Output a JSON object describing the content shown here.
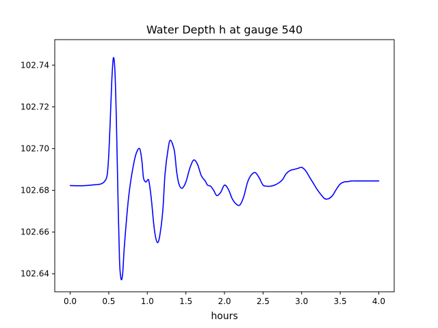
{
  "chart_data": {
    "type": "line",
    "title": "Water Depth h at gauge 540",
    "xlabel": "hours",
    "ylabel": "",
    "xlim": [
      -0.2,
      4.2
    ],
    "ylim": [
      102.6314,
      102.7522
    ],
    "grid": false,
    "x_ticks": [
      0.0,
      0.5,
      1.0,
      1.5,
      2.0,
      2.5,
      3.0,
      3.5,
      4.0
    ],
    "x_tick_labels": [
      "0.0",
      "0.5",
      "1.0",
      "1.5",
      "2.0",
      "2.5",
      "3.0",
      "3.5",
      "4.0"
    ],
    "y_ticks": [
      102.64,
      102.66,
      102.68,
      102.7,
      102.72,
      102.74
    ],
    "y_tick_labels": [
      "102.64",
      "102.66",
      "102.68",
      "102.70",
      "102.72",
      "102.74"
    ],
    "series": [
      {
        "name": "h",
        "color": "#0000ff",
        "x": [
          0.0,
          0.1,
          0.2,
          0.3,
          0.4,
          0.45,
          0.48,
          0.5,
          0.52,
          0.54,
          0.56,
          0.58,
          0.6,
          0.62,
          0.64,
          0.66,
          0.68,
          0.7,
          0.73,
          0.76,
          0.8,
          0.85,
          0.9,
          0.93,
          0.95,
          0.98,
          1.0,
          1.02,
          1.05,
          1.08,
          1.1,
          1.13,
          1.16,
          1.2,
          1.23,
          1.27,
          1.3,
          1.35,
          1.38,
          1.41,
          1.45,
          1.5,
          1.55,
          1.6,
          1.65,
          1.7,
          1.75,
          1.78,
          1.82,
          1.86,
          1.9,
          1.95,
          2.0,
          2.05,
          2.1,
          2.15,
          2.2,
          2.25,
          2.3,
          2.35,
          2.4,
          2.45,
          2.5,
          2.55,
          2.6,
          2.65,
          2.7,
          2.75,
          2.8,
          2.85,
          2.9,
          2.95,
          3.0,
          3.05,
          3.1,
          3.15,
          3.2,
          3.25,
          3.3,
          3.35,
          3.4,
          3.45,
          3.5,
          3.55,
          3.6,
          3.65,
          3.7,
          3.75,
          3.8,
          3.85,
          3.9,
          3.95,
          4.0
        ],
        "values": [
          102.6823,
          102.6822,
          102.6823,
          102.6826,
          102.6831,
          102.6845,
          102.6875,
          102.697,
          102.714,
          102.733,
          102.7435,
          102.737,
          102.712,
          102.676,
          102.646,
          102.6375,
          102.64,
          102.652,
          102.666,
          102.6775,
          102.688,
          102.697,
          102.7,
          102.694,
          102.686,
          102.684,
          102.6848,
          102.6845,
          102.6765,
          102.665,
          102.659,
          102.655,
          102.658,
          102.67,
          102.688,
          102.7,
          102.704,
          102.699,
          102.689,
          102.683,
          102.681,
          102.684,
          102.6905,
          102.6945,
          102.6925,
          102.687,
          102.6845,
          102.6825,
          102.682,
          102.68,
          102.6775,
          102.679,
          102.6825,
          102.6805,
          102.676,
          102.6735,
          102.673,
          102.677,
          102.684,
          102.6875,
          102.6885,
          102.686,
          102.6825,
          102.682,
          102.682,
          102.6825,
          102.6835,
          102.685,
          102.688,
          102.6895,
          102.69,
          102.6905,
          102.691,
          102.6895,
          102.6865,
          102.6835,
          102.6805,
          102.678,
          102.676,
          102.676,
          102.6775,
          102.6805,
          102.683,
          102.684,
          102.6842,
          102.6845,
          102.6845,
          102.6845,
          102.6845,
          102.6845,
          102.6845,
          102.6845,
          102.6845
        ]
      }
    ]
  }
}
